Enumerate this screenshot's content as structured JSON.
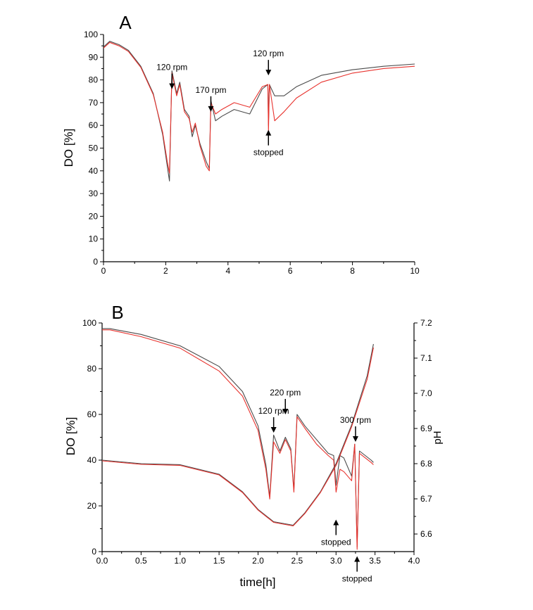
{
  "colors": {
    "series_black": "#4a4a4a",
    "series_red": "#e8322d",
    "axis": "#000000"
  },
  "chart_data": [
    {
      "type": "line",
      "panel_label": "A",
      "ylabel": "DO [%]",
      "xlabel": "",
      "xlim": [
        0,
        10
      ],
      "ylim": [
        0,
        100
      ],
      "x_ticks": [
        "0",
        "2",
        "4",
        "6",
        "8",
        "10"
      ],
      "y_ticks": [
        "0",
        "10",
        "20",
        "30",
        "40",
        "50",
        "60",
        "70",
        "80",
        "90",
        "100"
      ],
      "grid": false,
      "annotations": [
        {
          "text": "120 rpm",
          "x": 2.2,
          "y": 76,
          "arrow": "down"
        },
        {
          "text": "170 rpm",
          "x": 3.45,
          "y": 66,
          "arrow": "down"
        },
        {
          "text": "120 rpm",
          "x": 5.3,
          "y": 82,
          "arrow": "down"
        },
        {
          "text": "stopped",
          "x": 5.3,
          "y": 58,
          "arrow": "up"
        }
      ],
      "series": [
        {
          "color": "#4a4a4a",
          "points": [
            [
              0,
              94.5
            ],
            [
              0.2,
              97
            ],
            [
              0.5,
              95.5
            ],
            [
              0.8,
              93
            ],
            [
              1.2,
              86
            ],
            [
              1.6,
              74
            ],
            [
              1.9,
              56
            ],
            [
              2.05,
              42
            ],
            [
              2.12,
              35.5
            ],
            [
              2.2,
              84
            ],
            [
              2.35,
              74
            ],
            [
              2.45,
              79
            ],
            [
              2.6,
              67
            ],
            [
              2.75,
              64
            ],
            [
              2.85,
              55
            ],
            [
              2.95,
              60
            ],
            [
              3.1,
              52
            ],
            [
              3.3,
              44
            ],
            [
              3.4,
              41
            ],
            [
              3.45,
              71
            ],
            [
              3.6,
              62
            ],
            [
              3.8,
              64
            ],
            [
              4.2,
              67
            ],
            [
              4.7,
              65
            ],
            [
              5.1,
              76
            ],
            [
              5.28,
              78
            ],
            [
              5.3,
              60
            ],
            [
              5.33,
              78
            ],
            [
              5.5,
              73
            ],
            [
              5.8,
              73
            ],
            [
              6.2,
              77
            ],
            [
              7,
              82
            ],
            [
              8,
              84.5
            ],
            [
              9,
              86
            ],
            [
              10,
              87
            ]
          ]
        },
        {
          "color": "#e8322d",
          "points": [
            [
              0,
              94
            ],
            [
              0.2,
              96.5
            ],
            [
              0.5,
              95
            ],
            [
              0.8,
              92.5
            ],
            [
              1.2,
              85.5
            ],
            [
              1.6,
              73.5
            ],
            [
              1.9,
              57
            ],
            [
              2.05,
              44
            ],
            [
              2.12,
              39
            ],
            [
              2.2,
              83
            ],
            [
              2.35,
              73
            ],
            [
              2.45,
              78
            ],
            [
              2.6,
              66
            ],
            [
              2.75,
              63
            ],
            [
              2.85,
              57
            ],
            [
              2.95,
              61
            ],
            [
              3.1,
              51
            ],
            [
              3.3,
              42
            ],
            [
              3.4,
              40
            ],
            [
              3.45,
              70
            ],
            [
              3.6,
              65
            ],
            [
              3.8,
              67
            ],
            [
              4.2,
              70
            ],
            [
              4.7,
              68
            ],
            [
              5.1,
              77
            ],
            [
              5.28,
              78
            ],
            [
              5.3,
              57
            ],
            [
              5.33,
              78
            ],
            [
              5.5,
              62
            ],
            [
              5.8,
              66
            ],
            [
              6.2,
              72
            ],
            [
              7,
              79
            ],
            [
              8,
              83
            ],
            [
              9,
              85
            ],
            [
              10,
              86
            ]
          ]
        }
      ]
    },
    {
      "type": "line",
      "panel_label": "B",
      "ylabel": "DO [%]",
      "y2label": "pH",
      "xlabel": "time[h]",
      "xlim": [
        0,
        4.0
      ],
      "ylim": [
        0,
        100
      ],
      "y2lim": [
        6.55,
        7.2
      ],
      "x_ticks": [
        "0.0",
        "0.5",
        "1.0",
        "1.5",
        "2.0",
        "2.5",
        "3.0",
        "3.5",
        "4.0"
      ],
      "y_ticks": [
        "0",
        "20",
        "40",
        "60",
        "80",
        "100"
      ],
      "y2_ticks": [
        "6.6",
        "6.7",
        "6.8",
        "6.9",
        "7.0",
        "7.1",
        "7.2"
      ],
      "grid": false,
      "annotations": [
        {
          "text": "120 rpm",
          "x": 2.2,
          "y": 52,
          "arrow": "down"
        },
        {
          "text": "220 rpm",
          "x": 2.35,
          "y": 60,
          "arrow": "down"
        },
        {
          "text": "300 rpm",
          "x": 3.25,
          "y": 48,
          "arrow": "down"
        },
        {
          "text": "stopped",
          "x": 3.0,
          "y": 14,
          "arrow": "up"
        },
        {
          "text": "stopped",
          "x": 3.27,
          "y": -2,
          "arrow": "up"
        }
      ],
      "series": [
        {
          "color": "#4a4a4a",
          "axis": "DO",
          "points": [
            [
              0,
              97.5
            ],
            [
              0.1,
              97.5
            ],
            [
              0.5,
              95
            ],
            [
              1,
              90
            ],
            [
              1.5,
              81
            ],
            [
              1.8,
              70
            ],
            [
              2.0,
              55
            ],
            [
              2.1,
              38
            ],
            [
              2.15,
              24
            ],
            [
              2.2,
              51
            ],
            [
              2.28,
              44
            ],
            [
              2.35,
              50
            ],
            [
              2.42,
              45
            ],
            [
              2.46,
              27
            ],
            [
              2.5,
              60
            ],
            [
              2.6,
              55
            ],
            [
              2.75,
              49
            ],
            [
              2.9,
              43
            ],
            [
              2.97,
              42
            ],
            [
              3.0,
              29
            ],
            [
              3.05,
              42
            ],
            [
              3.1,
              41
            ],
            [
              3.2,
              33
            ],
            [
              3.24,
              47
            ],
            [
              3.27,
              2
            ],
            [
              3.3,
              44
            ],
            [
              3.45,
              40
            ],
            [
              3.48,
              39
            ]
          ]
        },
        {
          "color": "#e8322d",
          "axis": "DO",
          "points": [
            [
              0,
              97
            ],
            [
              0.1,
              97
            ],
            [
              0.5,
              94
            ],
            [
              1,
              89
            ],
            [
              1.5,
              79
            ],
            [
              1.8,
              68
            ],
            [
              2.0,
              53
            ],
            [
              2.1,
              36
            ],
            [
              2.15,
              23
            ],
            [
              2.2,
              48
            ],
            [
              2.28,
              43
            ],
            [
              2.35,
              49
            ],
            [
              2.42,
              44
            ],
            [
              2.46,
              26
            ],
            [
              2.5,
              59
            ],
            [
              2.6,
              54
            ],
            [
              2.75,
              47
            ],
            [
              2.9,
              42
            ],
            [
              2.97,
              40
            ],
            [
              3.0,
              26
            ],
            [
              3.05,
              36
            ],
            [
              3.1,
              35
            ],
            [
              3.2,
              31
            ],
            [
              3.24,
              47
            ],
            [
              3.27,
              1
            ],
            [
              3.3,
              43
            ],
            [
              3.45,
              39
            ],
            [
              3.48,
              38
            ]
          ]
        },
        {
          "color": "#4a4a4a",
          "axis": "pH",
          "points": [
            [
              0,
              6.81
            ],
            [
              0.5,
              6.8
            ],
            [
              1.0,
              6.797
            ],
            [
              1.5,
              6.77
            ],
            [
              1.8,
              6.72
            ],
            [
              2.0,
              6.67
            ],
            [
              2.2,
              6.635
            ],
            [
              2.45,
              6.625
            ],
            [
              2.6,
              6.66
            ],
            [
              2.8,
              6.72
            ],
            [
              3.0,
              6.8
            ],
            [
              3.2,
              6.91
            ],
            [
              3.4,
              7.05
            ],
            [
              3.48,
              7.14
            ]
          ]
        },
        {
          "color": "#e8322d",
          "axis": "pH",
          "points": [
            [
              0,
              6.808
            ],
            [
              0.5,
              6.798
            ],
            [
              1.0,
              6.795
            ],
            [
              1.5,
              6.768
            ],
            [
              1.8,
              6.718
            ],
            [
              2.0,
              6.668
            ],
            [
              2.2,
              6.633
            ],
            [
              2.45,
              6.623
            ],
            [
              2.6,
              6.658
            ],
            [
              2.8,
              6.718
            ],
            [
              3.0,
              6.795
            ],
            [
              3.2,
              6.905
            ],
            [
              3.4,
              7.04
            ],
            [
              3.48,
              7.13
            ]
          ]
        }
      ]
    }
  ]
}
